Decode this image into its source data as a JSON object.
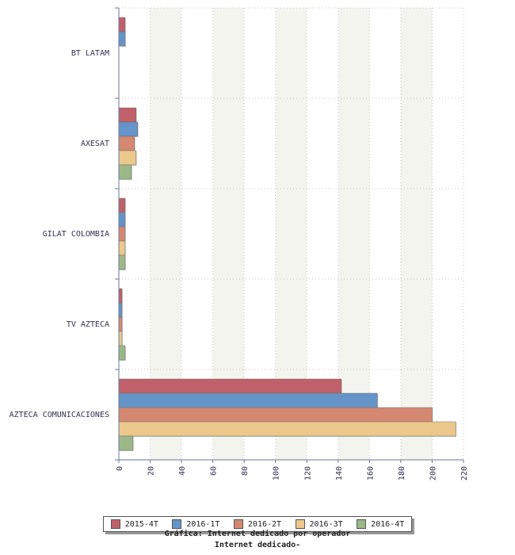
{
  "chart_data": {
    "type": "bar",
    "orientation": "horizontal",
    "categories": [
      "BT LATAM",
      "AXESAT",
      "GILAT COLOMBIA",
      "TV AZTECA",
      "AZTECA COMUNICACIONES"
    ],
    "series": [
      {
        "name": "2015-4T",
        "color": "#c0606a",
        "values": [
          4,
          11,
          4,
          2,
          142
        ]
      },
      {
        "name": "2016-1T",
        "color": "#6494c8",
        "values": [
          4,
          12,
          4,
          2,
          165
        ]
      },
      {
        "name": "2016-2T",
        "color": "#d48872",
        "values": [
          0,
          10,
          4,
          2,
          200
        ]
      },
      {
        "name": "2016-3T",
        "color": "#ecc88c",
        "values": [
          0,
          11,
          4,
          2,
          215
        ]
      },
      {
        "name": "2016-4T",
        "color": "#9cb888",
        "values": [
          0,
          8,
          4,
          4,
          9
        ]
      }
    ],
    "xlim": [
      0,
      220
    ],
    "xticks": [
      "0",
      "20",
      "40",
      "60",
      "80",
      "100",
      "120",
      "140",
      "160",
      "180",
      "200",
      "220"
    ],
    "grid": true,
    "legend_position": "bottom",
    "caption": [
      "Gráfica: Internet dedicado por operador",
      "Internet dedicado-"
    ]
  }
}
